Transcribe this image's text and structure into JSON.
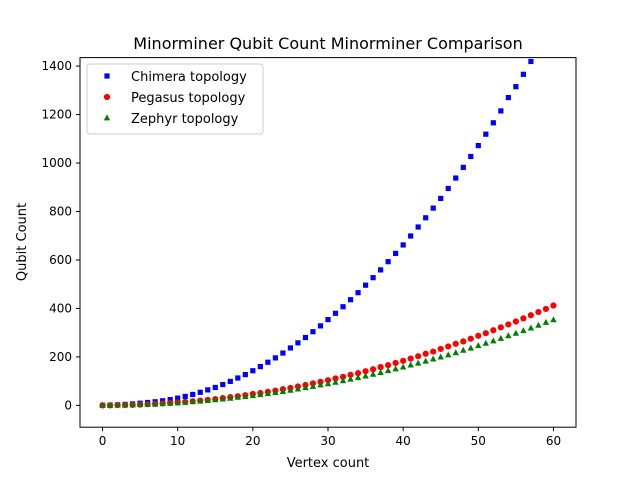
{
  "chart_data": {
    "type": "scatter",
    "title": "Minorminer Qubit Count Minorminer Comparison",
    "xlabel": "Vertex count",
    "ylabel": "Qubit Count",
    "xlim": [
      -3,
      63
    ],
    "ylim": [
      -90,
      1435
    ],
    "xticks": [
      0,
      10,
      20,
      30,
      40,
      50,
      60
    ],
    "yticks": [
      0,
      200,
      400,
      600,
      800,
      1000,
      1200,
      1400
    ],
    "grid": false,
    "legend_position": "top-left",
    "series": [
      {
        "name": "Chimera topology",
        "color": "#0000ff",
        "marker": "square",
        "points": [
          [
            0,
            0
          ],
          [
            1,
            1
          ],
          [
            2,
            2
          ],
          [
            3,
            4
          ],
          [
            4,
            6
          ],
          [
            5,
            9
          ],
          [
            6,
            12
          ],
          [
            7,
            15
          ],
          [
            8,
            19
          ],
          [
            9,
            24
          ],
          [
            10,
            30
          ],
          [
            11,
            37
          ],
          [
            12,
            45
          ],
          [
            13,
            54
          ],
          [
            14,
            64
          ],
          [
            15,
            74
          ],
          [
            16,
            86
          ],
          [
            17,
            99
          ],
          [
            18,
            113
          ],
          [
            19,
            127
          ],
          [
            20,
            143
          ],
          [
            21,
            160
          ],
          [
            22,
            178
          ],
          [
            23,
            196
          ],
          [
            24,
            216
          ],
          [
            25,
            237
          ],
          [
            26,
            258
          ],
          [
            27,
            280
          ],
          [
            28,
            304
          ],
          [
            29,
            328
          ],
          [
            30,
            354
          ],
          [
            31,
            380
          ],
          [
            32,
            407
          ],
          [
            33,
            436
          ],
          [
            34,
            465
          ],
          [
            35,
            496
          ],
          [
            36,
            527
          ],
          [
            37,
            559
          ],
          [
            38,
            593
          ],
          [
            39,
            627
          ],
          [
            40,
            662
          ],
          [
            41,
            699
          ],
          [
            42,
            736
          ],
          [
            43,
            774
          ],
          [
            44,
            814
          ],
          [
            45,
            854
          ],
          [
            46,
            895
          ],
          [
            47,
            938
          ],
          [
            48,
            982
          ],
          [
            49,
            1027
          ],
          [
            50,
            1072
          ],
          [
            51,
            1119
          ],
          [
            52,
            1166
          ],
          [
            53,
            1215
          ],
          [
            54,
            1270
          ],
          [
            55,
            1315
          ],
          [
            56,
            1366
          ],
          [
            57,
            1419
          ]
        ]
      },
      {
        "name": "Pegasus topology",
        "color": "#ff0000",
        "marker": "circle",
        "points": [
          [
            0,
            0
          ],
          [
            1,
            0
          ],
          [
            2,
            1
          ],
          [
            3,
            1
          ],
          [
            4,
            2
          ],
          [
            5,
            3
          ],
          [
            6,
            5
          ],
          [
            7,
            6
          ],
          [
            8,
            8
          ],
          [
            9,
            10
          ],
          [
            10,
            12
          ],
          [
            11,
            14
          ],
          [
            12,
            17
          ],
          [
            13,
            20
          ],
          [
            14,
            23
          ],
          [
            15,
            26
          ],
          [
            16,
            30
          ],
          [
            17,
            34
          ],
          [
            18,
            38
          ],
          [
            19,
            42
          ],
          [
            20,
            47
          ],
          [
            21,
            51
          ],
          [
            22,
            56
          ],
          [
            23,
            61
          ],
          [
            24,
            67
          ],
          [
            25,
            72
          ],
          [
            26,
            78
          ],
          [
            27,
            84
          ],
          [
            28,
            91
          ],
          [
            29,
            97
          ],
          [
            30,
            104
          ],
          [
            31,
            111
          ],
          [
            32,
            118
          ],
          [
            33,
            126
          ],
          [
            34,
            133
          ],
          [
            35,
            141
          ],
          [
            36,
            149
          ],
          [
            37,
            158
          ],
          [
            38,
            166
          ],
          [
            39,
            175
          ],
          [
            40,
            184
          ],
          [
            41,
            193
          ],
          [
            42,
            203
          ],
          [
            43,
            213
          ],
          [
            44,
            222
          ],
          [
            45,
            233
          ],
          [
            46,
            243
          ],
          [
            47,
            254
          ],
          [
            48,
            264
          ],
          [
            49,
            275
          ],
          [
            50,
            287
          ],
          [
            51,
            298
          ],
          [
            52,
            310
          ],
          [
            53,
            322
          ],
          [
            54,
            334
          ],
          [
            55,
            346
          ],
          [
            56,
            359
          ],
          [
            57,
            372
          ],
          [
            58,
            385
          ],
          [
            59,
            398
          ],
          [
            60,
            412
          ]
        ]
      },
      {
        "name": "Zephyr topology",
        "color": "#008000",
        "marker": "triangle",
        "points": [
          [
            0,
            0
          ],
          [
            1,
            0
          ],
          [
            2,
            1
          ],
          [
            3,
            1
          ],
          [
            4,
            2
          ],
          [
            5,
            3
          ],
          [
            6,
            4
          ],
          [
            7,
            5
          ],
          [
            8,
            7
          ],
          [
            9,
            8
          ],
          [
            10,
            10
          ],
          [
            11,
            12
          ],
          [
            12,
            15
          ],
          [
            13,
            17
          ],
          [
            14,
            20
          ],
          [
            15,
            23
          ],
          [
            16,
            26
          ],
          [
            17,
            29
          ],
          [
            18,
            33
          ],
          [
            19,
            36
          ],
          [
            20,
            40
          ],
          [
            21,
            44
          ],
          [
            22,
            48
          ],
          [
            23,
            53
          ],
          [
            24,
            57
          ],
          [
            25,
            62
          ],
          [
            26,
            67
          ],
          [
            27,
            73
          ],
          [
            28,
            78
          ],
          [
            29,
            84
          ],
          [
            30,
            89
          ],
          [
            31,
            95
          ],
          [
            32,
            101
          ],
          [
            33,
            108
          ],
          [
            34,
            114
          ],
          [
            35,
            121
          ],
          [
            36,
            128
          ],
          [
            37,
            135
          ],
          [
            38,
            143
          ],
          [
            39,
            150
          ],
          [
            40,
            158
          ],
          [
            41,
            166
          ],
          [
            42,
            174
          ],
          [
            43,
            182
          ],
          [
            44,
            191
          ],
          [
            45,
            199
          ],
          [
            46,
            208
          ],
          [
            47,
            217
          ],
          [
            48,
            227
          ],
          [
            49,
            236
          ],
          [
            50,
            246
          ],
          [
            51,
            256
          ],
          [
            52,
            266
          ],
          [
            53,
            276
          ],
          [
            54,
            287
          ],
          [
            55,
            297
          ],
          [
            56,
            308
          ],
          [
            57,
            319
          ],
          [
            58,
            330
          ],
          [
            59,
            342
          ],
          [
            60,
            353
          ]
        ]
      }
    ]
  }
}
